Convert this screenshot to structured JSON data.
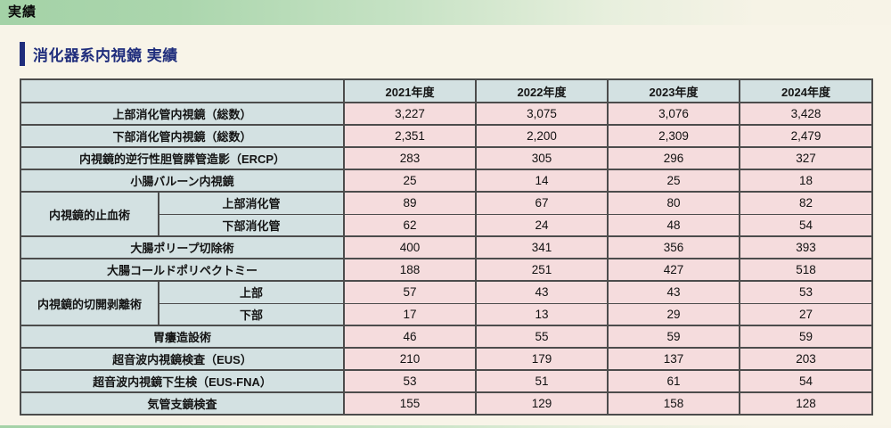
{
  "page": {
    "header_label": "実績",
    "section_title": "消化器系内視鏡 実績"
  },
  "colors": {
    "banner_green": "#a4d2a7",
    "page_cream": "#f8f4e8",
    "accent_navy": "#1f2d7c",
    "label_cell_bg": "#d3e1e2",
    "data_cell_bg": "#f5dcdd",
    "table_border": "#4c4c4c"
  },
  "table": {
    "year_headers": [
      "2021年度",
      "2022年度",
      "2023年度",
      "2024年度"
    ],
    "rows": [
      {
        "type": "single",
        "label": "上部消化管内視鏡（総数）",
        "values": [
          "3,227",
          "3,075",
          "3,076",
          "3,428"
        ]
      },
      {
        "type": "single",
        "label": "下部消化管内視鏡（総数）",
        "values": [
          "2,351",
          "2,200",
          "2,309",
          "2,479"
        ]
      },
      {
        "type": "single",
        "label": "内視鏡的逆行性胆管膵管造影（ERCP）",
        "values": [
          "283",
          "305",
          "296",
          "327"
        ]
      },
      {
        "type": "single",
        "label": "小腸バルーン内視鏡",
        "values": [
          "25",
          "14",
          "25",
          "18"
        ]
      },
      {
        "type": "group-first",
        "group": "内視鏡的止血術",
        "label": "上部消化管",
        "values": [
          "89",
          "67",
          "80",
          "82"
        ]
      },
      {
        "type": "group-last",
        "label": "下部消化管",
        "values": [
          "62",
          "24",
          "48",
          "54"
        ]
      },
      {
        "type": "single",
        "label": "大腸ポリープ切除術",
        "values": [
          "400",
          "341",
          "356",
          "393"
        ]
      },
      {
        "type": "single",
        "label": "大腸コールドポリペクトミー",
        "values": [
          "188",
          "251",
          "427",
          "518"
        ]
      },
      {
        "type": "group-first",
        "group": "内視鏡的切開剥離術",
        "label": "上部",
        "values": [
          "57",
          "43",
          "43",
          "53"
        ]
      },
      {
        "type": "group-last",
        "label": "下部",
        "values": [
          "17",
          "13",
          "29",
          "27"
        ]
      },
      {
        "type": "single",
        "label": "胃瘻造設術",
        "values": [
          "46",
          "55",
          "59",
          "59"
        ]
      },
      {
        "type": "single",
        "label": "超音波内視鏡検査（EUS）",
        "values": [
          "210",
          "179",
          "137",
          "203"
        ]
      },
      {
        "type": "single",
        "label": "超音波内視鏡下生検（EUS-FNA）",
        "values": [
          "53",
          "51",
          "61",
          "54"
        ]
      },
      {
        "type": "single",
        "label": "気管支鏡検査",
        "values": [
          "155",
          "129",
          "158",
          "128"
        ]
      }
    ]
  },
  "chart_data": {
    "type": "table",
    "title": "消化器系内視鏡 実績",
    "categories": [
      "2021年度",
      "2022年度",
      "2023年度",
      "2024年度"
    ],
    "series": [
      {
        "name": "上部消化管内視鏡（総数）",
        "values": [
          3227,
          3075,
          3076,
          3428
        ]
      },
      {
        "name": "下部消化管内視鏡（総数）",
        "values": [
          2351,
          2200,
          2309,
          2479
        ]
      },
      {
        "name": "内視鏡的逆行性胆管膵管造影（ERCP）",
        "values": [
          283,
          305,
          296,
          327
        ]
      },
      {
        "name": "小腸バルーン内視鏡",
        "values": [
          25,
          14,
          25,
          18
        ]
      },
      {
        "name": "内視鏡的止血術 上部消化管",
        "values": [
          89,
          67,
          80,
          82
        ]
      },
      {
        "name": "内視鏡的止血術 下部消化管",
        "values": [
          62,
          24,
          48,
          54
        ]
      },
      {
        "name": "大腸ポリープ切除術",
        "values": [
          400,
          341,
          356,
          393
        ]
      },
      {
        "name": "大腸コールドポリペクトミー",
        "values": [
          188,
          251,
          427,
          518
        ]
      },
      {
        "name": "内視鏡的切開剥離術 上部",
        "values": [
          57,
          43,
          43,
          53
        ]
      },
      {
        "name": "内視鏡的切開剥離術 下部",
        "values": [
          17,
          13,
          29,
          27
        ]
      },
      {
        "name": "胃瘻造設術",
        "values": [
          46,
          55,
          59,
          59
        ]
      },
      {
        "name": "超音波内視鏡検査（EUS）",
        "values": [
          210,
          179,
          137,
          203
        ]
      },
      {
        "name": "超音波内視鏡下生検（EUS-FNA）",
        "values": [
          53,
          51,
          61,
          54
        ]
      },
      {
        "name": "気管支鏡検査",
        "values": [
          155,
          129,
          158,
          128
        ]
      }
    ]
  }
}
